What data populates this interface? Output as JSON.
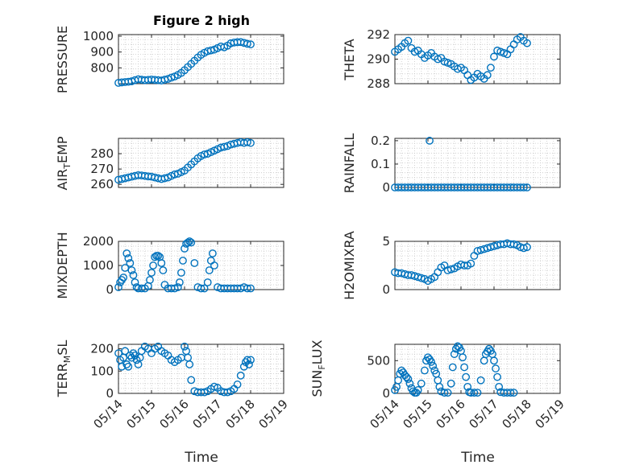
{
  "chart_data": [
    {
      "type": "scatter",
      "title": "Figure 2 high",
      "ylabel": "PRESSURE",
      "ylim": [
        700,
        1010
      ],
      "yticks": [
        800,
        900,
        1000
      ],
      "xlim": [
        0,
        5
      ],
      "xticks": [],
      "marker_color": "#0072BD",
      "x": [
        0,
        0.1,
        0.2,
        0.3,
        0.4,
        0.5,
        0.6,
        0.7,
        0.8,
        0.9,
        1.0,
        1.1,
        1.2,
        1.3,
        1.4,
        1.5,
        1.6,
        1.7,
        1.8,
        1.9,
        2.0,
        2.1,
        2.2,
        2.3,
        2.4,
        2.5,
        2.6,
        2.7,
        2.8,
        2.9,
        3.0,
        3.1,
        3.2,
        3.3,
        3.4,
        3.5,
        3.6,
        3.7,
        3.8,
        3.9,
        4.0
      ],
      "y": [
        705,
        708,
        710,
        712,
        715,
        722,
        728,
        725,
        722,
        724,
        726,
        724,
        722,
        720,
        725,
        730,
        738,
        745,
        755,
        768,
        785,
        805,
        825,
        845,
        865,
        882,
        895,
        905,
        910,
        915,
        925,
        935,
        930,
        940,
        955,
        960,
        962,
        963,
        958,
        952,
        948
      ]
    },
    {
      "type": "scatter",
      "title": "",
      "ylabel": "THETA",
      "ylim": [
        288,
        292
      ],
      "yticks": [
        288,
        290,
        292
      ],
      "xlim": [
        0,
        5
      ],
      "xticks": [],
      "marker_color": "#0072BD",
      "x": [
        0,
        0.1,
        0.2,
        0.3,
        0.4,
        0.5,
        0.6,
        0.7,
        0.8,
        0.9,
        1.0,
        1.1,
        1.2,
        1.3,
        1.4,
        1.5,
        1.6,
        1.7,
        1.8,
        1.9,
        2.0,
        2.1,
        2.2,
        2.3,
        2.4,
        2.5,
        2.6,
        2.7,
        2.8,
        2.9,
        3.0,
        3.1,
        3.2,
        3.3,
        3.4,
        3.5,
        3.6,
        3.7,
        3.8,
        3.9,
        4.0
      ],
      "y": [
        290.6,
        290.8,
        291.0,
        291.3,
        291.5,
        290.9,
        290.6,
        290.7,
        290.4,
        290.1,
        290.3,
        290.5,
        290.2,
        290.0,
        290.1,
        289.8,
        289.7,
        289.6,
        289.4,
        289.2,
        289.3,
        289.1,
        288.7,
        288.3,
        288.5,
        288.8,
        288.6,
        288.4,
        288.7,
        289.3,
        290.2,
        290.7,
        290.6,
        290.5,
        290.4,
        290.8,
        291.2,
        291.6,
        291.8,
        291.5,
        291.3
      ]
    },
    {
      "type": "scatter",
      "title": "",
      "ylabel": "AIR_TEMP",
      "ylim": [
        258,
        290
      ],
      "yticks": [
        260,
        270,
        280
      ],
      "xlim": [
        0,
        5
      ],
      "xticks": [],
      "marker_color": "#0072BD",
      "x": [
        0,
        0.1,
        0.2,
        0.3,
        0.4,
        0.5,
        0.6,
        0.7,
        0.8,
        0.9,
        1.0,
        1.1,
        1.2,
        1.3,
        1.4,
        1.5,
        1.6,
        1.7,
        1.8,
        1.9,
        2.0,
        2.1,
        2.2,
        2.3,
        2.4,
        2.5,
        2.6,
        2.7,
        2.8,
        2.9,
        3.0,
        3.1,
        3.2,
        3.3,
        3.4,
        3.5,
        3.6,
        3.7,
        3.8,
        3.9,
        4.0
      ],
      "y": [
        263,
        263.5,
        264,
        264.5,
        265,
        265.5,
        266,
        265.8,
        265.5,
        265.2,
        265,
        264.5,
        264,
        263.5,
        264,
        264.5,
        265.5,
        266.5,
        267,
        268,
        269,
        271,
        273,
        275,
        277,
        278.5,
        279.5,
        280,
        281,
        282,
        283,
        284,
        284.5,
        285,
        286,
        286.5,
        287,
        287.5,
        287,
        287.5,
        287
      ]
    },
    {
      "type": "scatter",
      "title": "",
      "ylabel": "RAINFALL",
      "ylim": [
        0,
        0.21
      ],
      "yticks": [
        0,
        0.1,
        0.2
      ],
      "xlim": [
        0,
        5
      ],
      "xticks": [],
      "marker_color": "#0072BD",
      "x": [
        0,
        0.1,
        0.2,
        0.3,
        0.4,
        0.5,
        0.6,
        0.7,
        0.8,
        0.9,
        1.0,
        1.05,
        1.1,
        1.2,
        1.3,
        1.4,
        1.5,
        1.6,
        1.7,
        1.8,
        1.9,
        2.0,
        2.1,
        2.2,
        2.3,
        2.4,
        2.5,
        2.6,
        2.7,
        2.8,
        2.9,
        3.0,
        3.1,
        3.2,
        3.3,
        3.4,
        3.5,
        3.6,
        3.7,
        3.8,
        3.9,
        4.0
      ],
      "y": [
        0,
        0,
        0,
        0,
        0,
        0,
        0,
        0,
        0,
        0,
        0,
        0.2,
        0,
        0,
        0,
        0,
        0,
        0,
        0,
        0,
        0,
        0,
        0,
        0,
        0,
        0,
        0,
        0,
        0,
        0,
        0,
        0,
        0,
        0,
        0,
        0,
        0,
        0,
        0,
        0,
        0,
        0
      ]
    },
    {
      "type": "scatter",
      "title": "",
      "ylabel": "MIXDEPTH",
      "ylim": [
        0,
        2000
      ],
      "yticks": [
        0,
        1000,
        2000
      ],
      "xlim": [
        0,
        5
      ],
      "xticks": [],
      "marker_color": "#0072BD",
      "x": [
        0,
        0.05,
        0.1,
        0.15,
        0.2,
        0.25,
        0.3,
        0.35,
        0.4,
        0.45,
        0.5,
        0.55,
        0.6,
        0.7,
        0.8,
        0.9,
        0.95,
        1.0,
        1.05,
        1.1,
        1.15,
        1.2,
        1.25,
        1.3,
        1.35,
        1.4,
        1.5,
        1.6,
        1.7,
        1.8,
        1.85,
        1.9,
        1.95,
        2.0,
        2.05,
        2.1,
        2.15,
        2.2,
        2.3,
        2.4,
        2.5,
        2.6,
        2.7,
        2.75,
        2.8,
        2.85,
        2.9,
        3.0,
        3.1,
        3.2,
        3.3,
        3.4,
        3.5,
        3.6,
        3.7,
        3.8,
        3.9,
        4.0
      ],
      "y": [
        100,
        300,
        400,
        500,
        900,
        1500,
        1300,
        1100,
        800,
        600,
        300,
        100,
        50,
        50,
        50,
        150,
        400,
        700,
        1000,
        1350,
        1400,
        1400,
        1350,
        1100,
        800,
        200,
        50,
        50,
        50,
        100,
        300,
        700,
        1200,
        1700,
        1900,
        1950,
        2000,
        1950,
        1100,
        100,
        50,
        50,
        300,
        800,
        1200,
        1500,
        1000,
        100,
        50,
        50,
        50,
        50,
        50,
        50,
        50,
        100,
        50,
        50
      ]
    },
    {
      "type": "scatter",
      "title": "",
      "ylabel": "H2OMIXRA",
      "ylim": [
        0,
        5
      ],
      "yticks": [
        0,
        5
      ],
      "xlim": [
        0,
        5
      ],
      "xticks": [],
      "marker_color": "#0072BD",
      "x": [
        0,
        0.1,
        0.2,
        0.3,
        0.4,
        0.5,
        0.6,
        0.7,
        0.8,
        0.9,
        1.0,
        1.1,
        1.2,
        1.3,
        1.4,
        1.5,
        1.6,
        1.7,
        1.8,
        1.9,
        2.0,
        2.1,
        2.2,
        2.3,
        2.4,
        2.5,
        2.6,
        2.7,
        2.8,
        2.9,
        3.0,
        3.1,
        3.2,
        3.3,
        3.4,
        3.5,
        3.6,
        3.7,
        3.8,
        3.9,
        4.0
      ],
      "y": [
        1.8,
        1.7,
        1.7,
        1.6,
        1.5,
        1.5,
        1.4,
        1.3,
        1.2,
        1.1,
        0.9,
        1.1,
        1.3,
        1.8,
        2.3,
        2.5,
        2.0,
        2.1,
        2.2,
        2.4,
        2.6,
        2.5,
        2.5,
        2.7,
        3.5,
        4.0,
        4.1,
        4.2,
        4.3,
        4.4,
        4.5,
        4.6,
        4.7,
        4.7,
        4.8,
        4.7,
        4.7,
        4.6,
        4.4,
        4.3,
        4.4
      ]
    },
    {
      "type": "scatter",
      "title": "",
      "ylabel": "TERR_MSL",
      "ylim": [
        0,
        220
      ],
      "yticks": [
        0,
        100,
        200
      ],
      "xlim": [
        0,
        5
      ],
      "xticks": [
        "05/14",
        "05/15",
        "05/16",
        "05/17",
        "05/18",
        "05/19"
      ],
      "xlabel": "Time",
      "marker_color": "#0072BD",
      "x": [
        0,
        0.05,
        0.1,
        0.15,
        0.2,
        0.25,
        0.3,
        0.35,
        0.4,
        0.45,
        0.5,
        0.55,
        0.6,
        0.65,
        0.7,
        0.8,
        0.9,
        1.0,
        1.1,
        1.2,
        1.3,
        1.4,
        1.5,
        1.6,
        1.7,
        1.8,
        1.9,
        2.0,
        2.05,
        2.1,
        2.15,
        2.2,
        2.3,
        2.4,
        2.5,
        2.6,
        2.7,
        2.8,
        2.9,
        3.0,
        3.1,
        3.2,
        3.3,
        3.4,
        3.5,
        3.6,
        3.7,
        3.8,
        3.85,
        3.9,
        3.95,
        4.0
      ],
      "y": [
        180,
        150,
        120,
        160,
        190,
        130,
        120,
        170,
        160,
        180,
        170,
        150,
        130,
        160,
        190,
        210,
        200,
        180,
        200,
        210,
        190,
        180,
        170,
        150,
        140,
        150,
        160,
        210,
        190,
        160,
        130,
        60,
        10,
        5,
        5,
        5,
        10,
        20,
        30,
        25,
        10,
        5,
        5,
        10,
        20,
        40,
        80,
        120,
        140,
        150,
        130,
        150
      ]
    },
    {
      "type": "scatter",
      "title": "",
      "ylabel": "SUN_FLUX",
      "ylim": [
        0,
        750
      ],
      "yticks": [
        0,
        500
      ],
      "xlim": [
        0,
        5
      ],
      "xticks": [
        "05/14",
        "05/15",
        "05/16",
        "05/17",
        "05/18",
        "05/19"
      ],
      "xlabel": "Time",
      "marker_color": "#0072BD",
      "x": [
        0,
        0.05,
        0.1,
        0.15,
        0.2,
        0.25,
        0.3,
        0.35,
        0.4,
        0.45,
        0.5,
        0.55,
        0.6,
        0.65,
        0.7,
        0.8,
        0.9,
        0.95,
        1.0,
        1.05,
        1.1,
        1.15,
        1.2,
        1.25,
        1.3,
        1.35,
        1.4,
        1.5,
        1.6,
        1.7,
        1.75,
        1.8,
        1.85,
        1.9,
        1.95,
        2.0,
        2.05,
        2.1,
        2.15,
        2.2,
        2.25,
        2.3,
        2.4,
        2.5,
        2.6,
        2.7,
        2.75,
        2.8,
        2.85,
        2.9,
        2.95,
        3.0,
        3.05,
        3.1,
        3.15,
        3.2,
        3.3,
        3.4,
        3.5,
        3.6
      ],
      "y": [
        50,
        100,
        200,
        300,
        350,
        320,
        280,
        250,
        220,
        150,
        80,
        30,
        10,
        10,
        50,
        150,
        350,
        500,
        550,
        520,
        480,
        420,
        350,
        300,
        200,
        100,
        30,
        10,
        10,
        150,
        400,
        600,
        680,
        720,
        700,
        650,
        550,
        400,
        250,
        100,
        20,
        10,
        10,
        10,
        200,
        500,
        600,
        640,
        680,
        650,
        600,
        500,
        380,
        250,
        100,
        20,
        10,
        10,
        10,
        10
      ]
    }
  ]
}
